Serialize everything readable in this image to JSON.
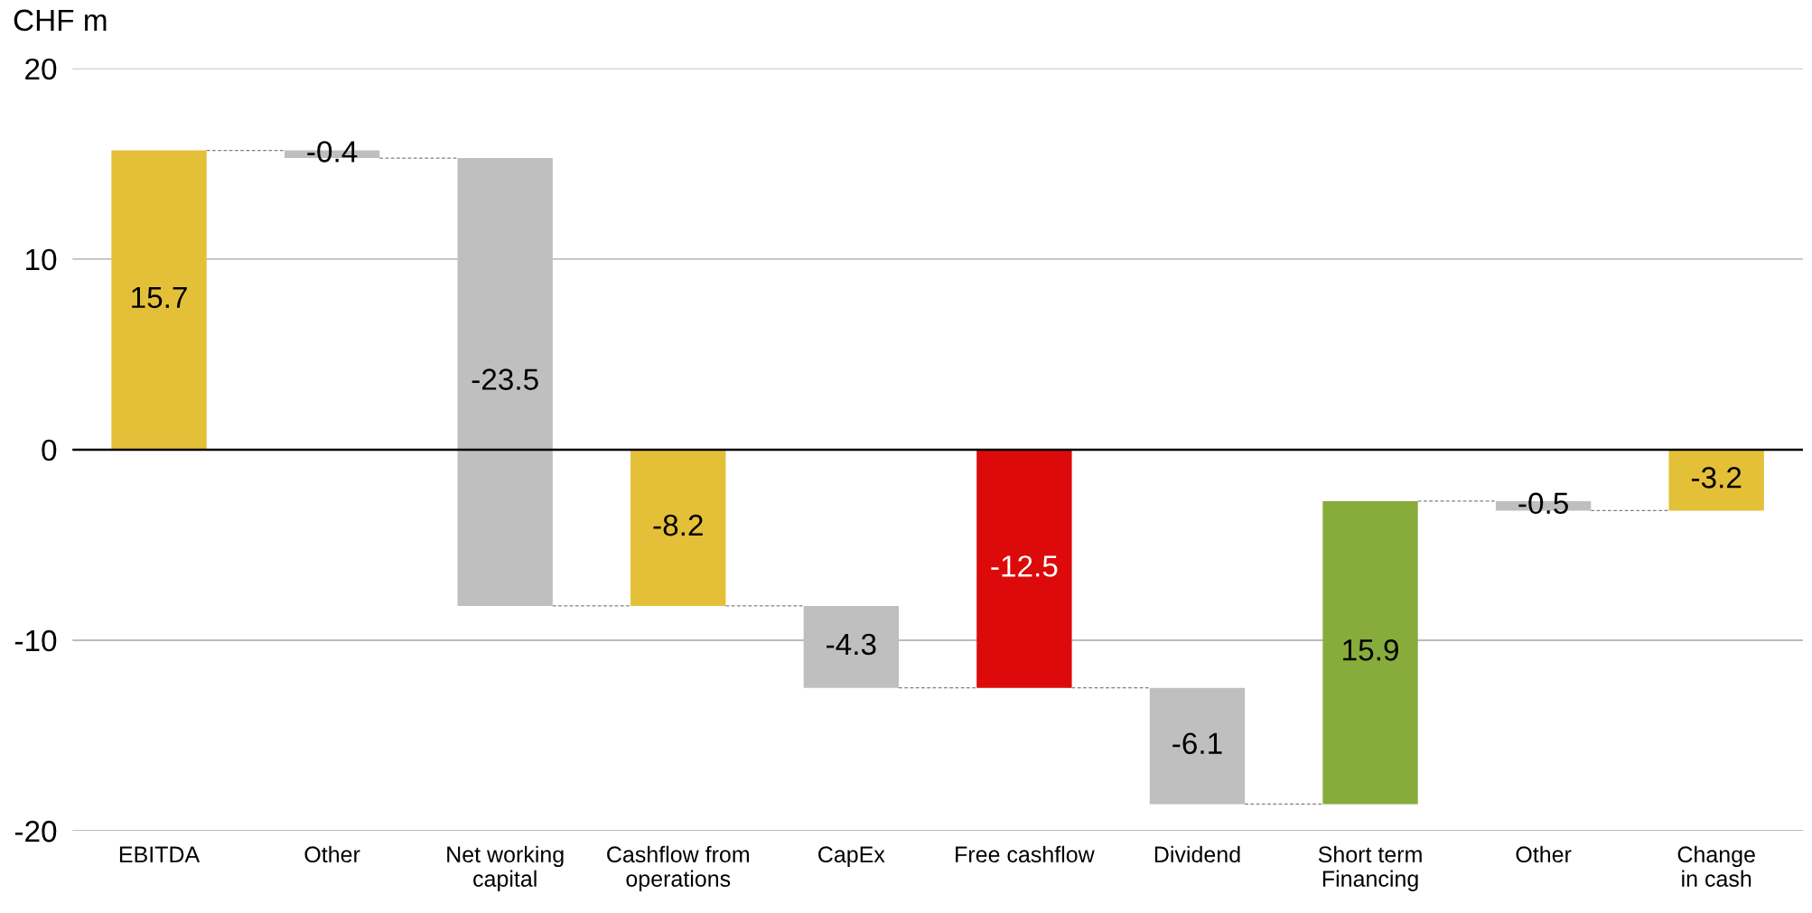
{
  "chart_data": {
    "type": "bar",
    "ylabel": "CHF m",
    "categories": [
      "EBITDA",
      "Other",
      "Net working\ncapital",
      "Cashflow from\noperations",
      "CapEx",
      "Free cashflow",
      "Dividend",
      "Short term\nFinancing",
      "Other",
      "Change\nin cash"
    ],
    "values": [
      15.7,
      -0.4,
      -23.5,
      -8.2,
      -4.3,
      -12.5,
      -6.1,
      15.9,
      -0.5,
      -3.2
    ],
    "base": [
      0,
      15.7,
      15.3,
      0,
      -8.2,
      0,
      -12.5,
      -18.6,
      -2.7,
      0
    ],
    "colors": [
      "#e3c038",
      "#bfbfbf",
      "#bfbfbf",
      "#e3c038",
      "#bfbfbf",
      "#dc0a0a",
      "#bfbfbf",
      "#88ac3c",
      "#bfbfbf",
      "#e3c038"
    ],
    "ylim": [
      -20,
      20
    ],
    "yticks": [
      -20,
      -10,
      0,
      10,
      20
    ],
    "grid": "y",
    "data_labels": true
  }
}
